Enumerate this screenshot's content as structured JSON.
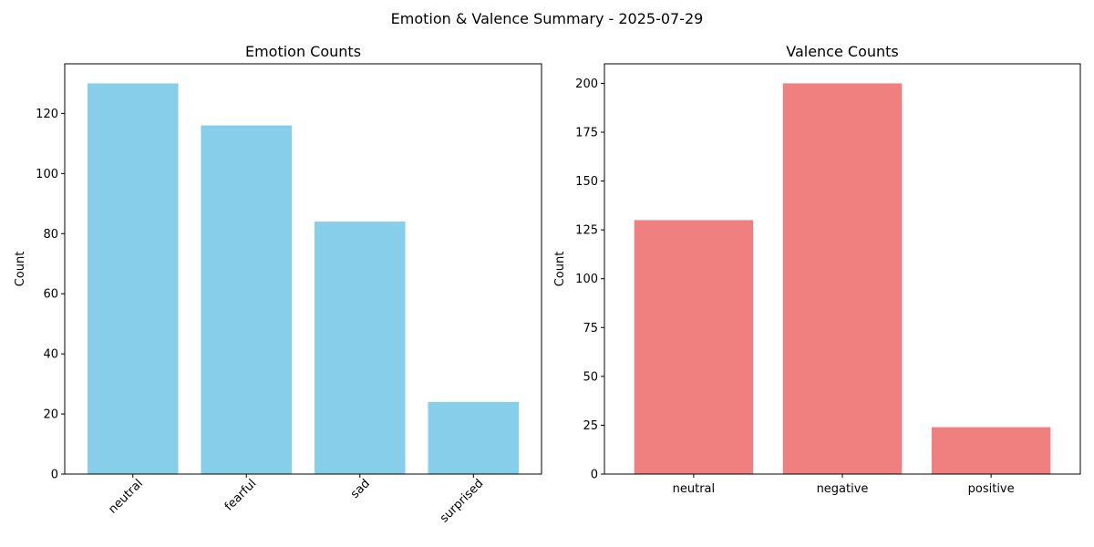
{
  "figure": {
    "suptitle": "Emotion & Valence Summary - 2025-07-29"
  },
  "chart_data": [
    {
      "type": "bar",
      "title": "Emotion Counts",
      "xlabel": "",
      "ylabel": "Count",
      "categories": [
        "neutral",
        "fearful",
        "sad",
        "surprised"
      ],
      "values": [
        130,
        116,
        84,
        24
      ],
      "ylim": [
        0,
        136.5
      ],
      "yticks": [
        0,
        20,
        40,
        60,
        80,
        100,
        120
      ],
      "xtick_rotation_deg": 45,
      "bar_color": "#87ceeb",
      "grid": false,
      "legend": "none"
    },
    {
      "type": "bar",
      "title": "Valence Counts",
      "xlabel": "",
      "ylabel": "Count",
      "categories": [
        "neutral",
        "negative",
        "positive"
      ],
      "values": [
        130,
        200,
        24
      ],
      "ylim": [
        0,
        210
      ],
      "yticks": [
        0,
        25,
        50,
        75,
        100,
        125,
        150,
        175,
        200
      ],
      "xtick_rotation_deg": 0,
      "bar_color": "#f08080",
      "grid": false,
      "legend": "none"
    }
  ]
}
